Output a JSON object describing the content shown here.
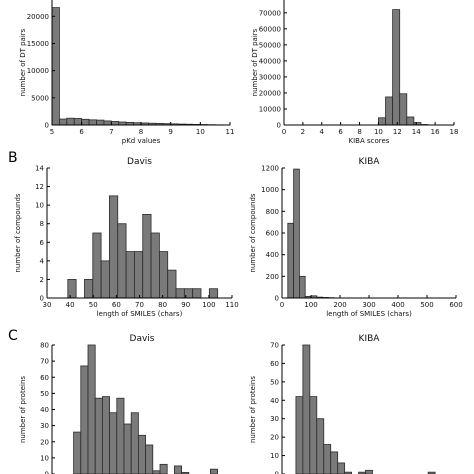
{
  "panels": [
    "B",
    "C"
  ],
  "chart_data": [
    {
      "type": "bar",
      "title": "",
      "xlabel": "pKd values",
      "ylabel": "number of DT pairs",
      "xlim": [
        5,
        11
      ],
      "ylim": [
        0,
        23000
      ],
      "xticks": [
        "5",
        "6",
        "7",
        "8",
        "9",
        "10",
        "11"
      ],
      "yticks": [
        "0",
        "5000",
        "10000",
        "15000",
        "20000"
      ],
      "bin_edges": [
        5,
        5.25,
        5.5,
        5.75,
        6,
        6.25,
        6.5,
        6.75,
        7,
        7.25,
        7.5,
        7.75,
        8,
        8.25,
        8.5,
        8.75,
        9,
        9.25,
        9.5,
        9.75,
        10,
        10.25,
        10.5,
        10.75,
        11
      ],
      "values": [
        21600,
        1100,
        1250,
        1200,
        1050,
        950,
        900,
        750,
        650,
        550,
        480,
        420,
        380,
        330,
        290,
        250,
        210,
        170,
        140,
        110,
        80,
        50,
        30,
        20
      ]
    },
    {
      "type": "bar",
      "title": "",
      "xlabel": "KIBA scores",
      "ylabel": "number of DT pairs",
      "xlim": [
        0,
        18
      ],
      "ylim": [
        0,
        78000
      ],
      "xticks": [
        "0",
        "2",
        "4",
        "6",
        "8",
        "10",
        "12",
        "14",
        "16",
        "18"
      ],
      "yticks": [
        "0",
        "10000",
        "20000",
        "30000",
        "40000",
        "50000",
        "60000",
        "70000"
      ],
      "bin_edges": [
        10,
        10.75,
        11.5,
        12.25,
        13,
        13.75,
        14.5,
        15.25
      ],
      "values": [
        4500,
        17500,
        72000,
        19500,
        5000,
        1500,
        300
      ]
    },
    {
      "type": "bar",
      "title": "Davis",
      "xlabel": "length of SMILES (chars)",
      "ylabel": "number of compounds",
      "xlim": [
        30,
        110
      ],
      "ylim": [
        0,
        14
      ],
      "xticks": [
        "30",
        "40",
        "50",
        "60",
        "70",
        "80",
        "90",
        "100",
        "110"
      ],
      "yticks": [
        "0",
        "2",
        "4",
        "6",
        "8",
        "10",
        "12",
        "14"
      ],
      "bin_edges": [
        39,
        42.6,
        46.2,
        49.8,
        53.4,
        57,
        60.6,
        64.2,
        67.8,
        71.4,
        75,
        78.6,
        82.2,
        85.8,
        89.4,
        93,
        96.6,
        100.2,
        103.8
      ],
      "values": [
        2,
        0,
        2,
        7,
        4,
        11,
        8,
        5,
        5,
        9,
        7,
        5,
        3,
        1,
        1,
        1,
        0,
        1
      ]
    },
    {
      "type": "bar",
      "title": "KIBA",
      "xlabel": "length of SMILES (chars)",
      "ylabel": "number of compounds",
      "xlim": [
        0,
        600
      ],
      "ylim": [
        0,
        1200
      ],
      "xticks": [
        "0",
        "100",
        "200",
        "300",
        "400",
        "500",
        "600"
      ],
      "yticks": [
        "0",
        "200",
        "400",
        "600",
        "800",
        "1000",
        "1200"
      ],
      "bin_edges": [
        20,
        40,
        60,
        80,
        100,
        120,
        140,
        160,
        180
      ],
      "values": [
        690,
        1190,
        200,
        15,
        20,
        8,
        5,
        3
      ]
    },
    {
      "type": "bar",
      "title": "Davis",
      "xlabel": "",
      "ylabel": "number of proteins",
      "xlim": [
        0,
        100
      ],
      "ylim": [
        0,
        80
      ],
      "xticks": [],
      "yticks": [
        "0",
        "10",
        "20",
        "30",
        "40",
        "50",
        "60",
        "70",
        "80"
      ],
      "bin_edges": [
        12,
        16,
        20,
        24,
        28,
        32,
        36,
        40,
        44,
        48,
        52,
        56,
        60,
        64,
        68,
        72,
        76,
        80,
        84,
        88,
        92,
        96
      ],
      "values": [
        26,
        67,
        80,
        47,
        48,
        38,
        47,
        31,
        38,
        24,
        18,
        2,
        6,
        0,
        5,
        1,
        0,
        0,
        0,
        3,
        0
      ]
    },
    {
      "type": "bar",
      "title": "KIBA",
      "xlabel": "",
      "ylabel": "number of proteins",
      "xlim": [
        0,
        100
      ],
      "ylim": [
        0,
        70
      ],
      "xticks": [],
      "yticks": [
        "0",
        "10",
        "20",
        "30",
        "40",
        "50",
        "60",
        "70"
      ],
      "bin_edges": [
        8,
        12,
        16,
        20,
        24,
        28,
        32,
        36,
        40,
        44,
        48,
        52,
        56,
        60,
        64,
        68,
        72,
        76,
        80,
        84,
        88
      ],
      "values": [
        42,
        70,
        42,
        30,
        16,
        12,
        6,
        1,
        0,
        1,
        2,
        0,
        0,
        0,
        0,
        0,
        0,
        0,
        0,
        1
      ]
    }
  ]
}
